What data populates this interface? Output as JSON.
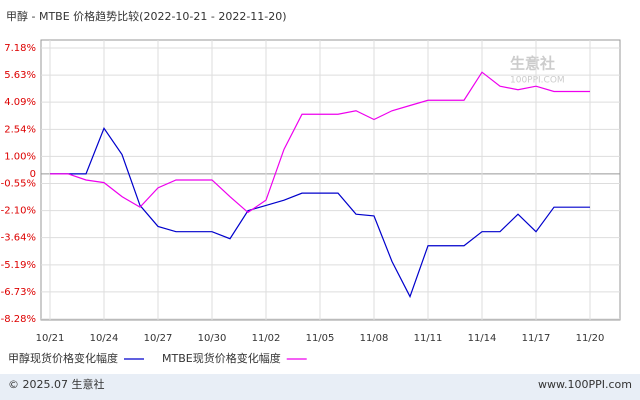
{
  "chart_data": {
    "type": "line",
    "title": "甲醇 - MTBE 价格趋势比较(2022-10-21 - 2022-11-20)",
    "watermark": [
      "生意社",
      "100PPI.COM"
    ],
    "footer": {
      "left": "© 2025.07 生意社",
      "right": "www.100PPI.com"
    },
    "categories": [
      "10/21",
      null,
      null,
      "10/24",
      null,
      null,
      "10/27",
      null,
      null,
      "10/30",
      null,
      null,
      "11/02",
      null,
      null,
      "11/05",
      null,
      null,
      "11/08",
      null,
      null,
      "11/11",
      null,
      null,
      "11/14",
      null,
      null,
      "11/17",
      null,
      null,
      "11/20"
    ],
    "ylim": [
      -8.28,
      7.18
    ],
    "yticks": [
      {
        "value": 7.18,
        "label": "7.18%"
      },
      {
        "value": 5.63,
        "label": "5.63%"
      },
      {
        "value": 4.09,
        "label": "4.09%"
      },
      {
        "value": 2.54,
        "label": "2.54%"
      },
      {
        "value": 1.0,
        "label": "1.00%"
      },
      0,
      {
        "value": -0.55,
        "label": "-0.55%"
      },
      {
        "value": -2.1,
        "label": "-2.10%"
      },
      {
        "value": -3.64,
        "label": "-3.64%"
      },
      {
        "value": -5.19,
        "label": "-5.19%"
      },
      {
        "value": -6.73,
        "label": "-6.73%"
      },
      {
        "value": -8.28,
        "label": "-8.28%"
      }
    ],
    "grid": true,
    "legend": "bottom",
    "series": [
      {
        "name": "甲醇现货价格变化幅度",
        "color": "#0000cc",
        "values": [
          0,
          0,
          0,
          2.6,
          1.1,
          -1.8,
          -3.0,
          -3.3,
          -3.3,
          -3.3,
          -3.7,
          -2.1,
          -1.8,
          -1.5,
          -1.1,
          -1.1,
          -1.1,
          -2.3,
          -2.4,
          -5.0,
          -7.0,
          -4.1,
          -4.1,
          -4.1,
          -3.3,
          -3.3,
          -2.3,
          -3.3,
          -1.9,
          -1.9,
          -1.9
        ]
      },
      {
        "name": "MTBE现货价格变化幅度",
        "color": "#ee00ee",
        "values": [
          0,
          0,
          -0.35,
          -0.5,
          -1.3,
          -1.9,
          -0.8,
          -0.35,
          -0.35,
          -0.35,
          -1.3,
          -2.2,
          -1.5,
          1.4,
          3.4,
          3.4,
          3.4,
          3.6,
          3.1,
          3.6,
          3.9,
          4.2,
          4.2,
          4.2,
          5.8,
          5.0,
          4.8,
          5.0,
          4.7,
          4.7,
          4.7
        ]
      }
    ]
  }
}
